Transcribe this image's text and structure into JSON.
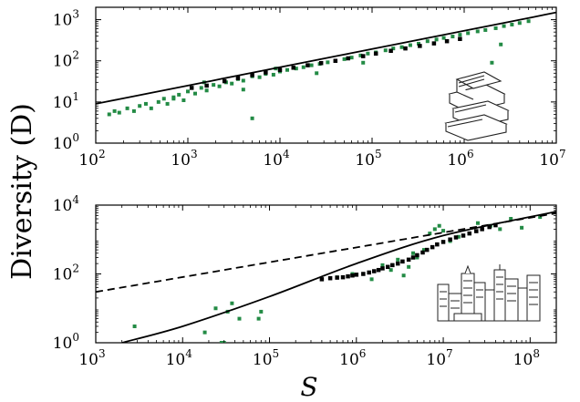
{
  "figure": {
    "ylabel": "Diversity (D)",
    "xlabel": "S"
  },
  "colors": {
    "green": "#238b45",
    "black": "#000000"
  },
  "chart_data": [
    {
      "type": "scatter",
      "panel": "top",
      "icon": "books-icon",
      "xscale": "log",
      "yscale": "log",
      "xlim": [
        100,
        10000000
      ],
      "ylim": [
        1,
        2000
      ],
      "x_ticks": [
        {
          "value": 100,
          "label": "10^2"
        },
        {
          "value": 1000,
          "label": "10^3"
        },
        {
          "value": 10000,
          "label": "10^4"
        },
        {
          "value": 100000,
          "label": "10^5"
        },
        {
          "value": 1000000,
          "label": "10^6"
        },
        {
          "value": 10000000,
          "label": "10^7"
        }
      ],
      "y_ticks": [
        {
          "value": 1,
          "label": "10^0"
        },
        {
          "value": 10,
          "label": "10^1"
        },
        {
          "value": 100,
          "label": "10^2"
        },
        {
          "value": 1000,
          "label": "10^3"
        }
      ],
      "series": [
        {
          "color": "#238b45",
          "marker": "square",
          "points": [
            [
              140,
              5
            ],
            [
              160,
              6
            ],
            [
              180,
              5.5
            ],
            [
              220,
              7
            ],
            [
              260,
              6
            ],
            [
              300,
              8
            ],
            [
              350,
              9
            ],
            [
              400,
              7
            ],
            [
              480,
              10
            ],
            [
              550,
              12
            ],
            [
              600,
              9
            ],
            [
              700,
              13
            ],
            [
              800,
              15
            ],
            [
              900,
              11
            ],
            [
              1000,
              18
            ],
            [
              1200,
              16
            ],
            [
              1400,
              22
            ],
            [
              1600,
              19
            ],
            [
              1900,
              26
            ],
            [
              2200,
              24
            ],
            [
              2600,
              30
            ],
            [
              3000,
              28
            ],
            [
              3500,
              36
            ],
            [
              4000,
              33
            ],
            [
              5000,
              42
            ],
            [
              6000,
              40
            ],
            [
              7000,
              48
            ],
            [
              8500,
              46
            ],
            [
              10000,
              55
            ],
            [
              12000,
              60
            ],
            [
              15000,
              65
            ],
            [
              18000,
              70
            ],
            [
              22000,
              78
            ],
            [
              27000,
              84
            ],
            [
              33000,
              92
            ],
            [
              40000,
              100
            ],
            [
              50000,
              110
            ],
            [
              60000,
              120
            ],
            [
              75000,
              135
            ],
            [
              90000,
              150
            ],
            [
              110000,
              160
            ],
            [
              140000,
              180
            ],
            [
              170000,
              200
            ],
            [
              210000,
              215
            ],
            [
              260000,
              240
            ],
            [
              320000,
              260
            ],
            [
              400000,
              300
            ],
            [
              500000,
              330
            ],
            [
              600000,
              360
            ],
            [
              750000,
              390
            ],
            [
              900000,
              430
            ],
            [
              1100000,
              470
            ],
            [
              1400000,
              520
            ],
            [
              1700000,
              560
            ],
            [
              2200000,
              620
            ],
            [
              2700000,
              700
            ],
            [
              3300000,
              760
            ],
            [
              4000000,
              830
            ],
            [
              5000000,
              920
            ],
            [
              2500000,
              250
            ],
            [
              2000000,
              90
            ],
            [
              5000,
              4
            ],
            [
              700,
              12
            ],
            [
              1500,
              30
            ],
            [
              4000,
              20
            ],
            [
              9000,
              65
            ],
            [
              25000,
              50
            ],
            [
              80000,
              90
            ]
          ]
        },
        {
          "color": "#000000",
          "marker": "square",
          "points": [
            [
              1100,
              22
            ],
            [
              1600,
              25
            ],
            [
              2500,
              32
            ],
            [
              3500,
              38
            ],
            [
              5000,
              45
            ],
            [
              7000,
              52
            ],
            [
              10000,
              60
            ],
            [
              14000,
              68
            ],
            [
              20000,
              78
            ],
            [
              28000,
              88
            ],
            [
              40000,
              100
            ],
            [
              55000,
              115
            ],
            [
              80000,
              130
            ],
            [
              110000,
              150
            ],
            [
              160000,
              175
            ],
            [
              230000,
              200
            ],
            [
              330000,
              230
            ],
            [
              470000,
              265
            ],
            [
              650000,
              300
            ],
            [
              900000,
              340
            ]
          ]
        }
      ],
      "fit_line": {
        "style": "solid",
        "color": "#000000",
        "x": [
          100,
          10000000
        ],
        "y": [
          9,
          1500
        ]
      }
    },
    {
      "type": "scatter",
      "panel": "bottom",
      "icon": "city-skyline-icon",
      "xscale": "log",
      "yscale": "log",
      "xlim": [
        1000,
        200000000
      ],
      "ylim": [
        1,
        10000
      ],
      "x_ticks": [
        {
          "value": 1000,
          "label": "10^3"
        },
        {
          "value": 10000,
          "label": "10^4"
        },
        {
          "value": 100000,
          "label": "10^5"
        },
        {
          "value": 1000000,
          "label": "10^6"
        },
        {
          "value": 10000000,
          "label": "10^7"
        },
        {
          "value": 100000000,
          "label": "10^8"
        }
      ],
      "y_ticks": [
        {
          "value": 1,
          "label": "10^0"
        },
        {
          "value": 100,
          "label": "10^2"
        },
        {
          "value": 10000,
          "label": "10^4"
        }
      ],
      "series": [
        {
          "color": "#238b45",
          "marker": "square",
          "points": [
            [
              2800,
              3
            ],
            [
              18000,
              2
            ],
            [
              24000,
              10
            ],
            [
              28000,
              1
            ],
            [
              30000,
              1
            ],
            [
              33000,
              8
            ],
            [
              37000,
              14
            ],
            [
              45000,
              5
            ],
            [
              75000,
              5
            ],
            [
              80000,
              8
            ],
            [
              600000,
              80
            ],
            [
              900000,
              100
            ],
            [
              1500000,
              70
            ],
            [
              2000000,
              180
            ],
            [
              2500000,
              130
            ],
            [
              3000000,
              260
            ],
            [
              3500000,
              90
            ],
            [
              4000000,
              160
            ],
            [
              4500000,
              400
            ],
            [
              5000000,
              300
            ],
            [
              6000000,
              500
            ],
            [
              7000000,
              1500
            ],
            [
              8000000,
              2000
            ],
            [
              9000000,
              2500
            ],
            [
              10000000,
              1800
            ],
            [
              12000000,
              900
            ],
            [
              15000000,
              1200
            ],
            [
              20000000,
              1500
            ],
            [
              25000000,
              3000
            ],
            [
              35000000,
              2500
            ],
            [
              45000000,
              2000
            ],
            [
              60000000,
              4000
            ],
            [
              80000000,
              2200
            ],
            [
              130000000,
              4500
            ]
          ]
        },
        {
          "color": "#000000",
          "marker": "square",
          "points": [
            [
              400000,
              70
            ],
            [
              500000,
              75
            ],
            [
              600000,
              78
            ],
            [
              700000,
              80
            ],
            [
              800000,
              85
            ],
            [
              900000,
              90
            ],
            [
              1000000,
              95
            ],
            [
              1200000,
              100
            ],
            [
              1400000,
              110
            ],
            [
              1600000,
              120
            ],
            [
              1800000,
              130
            ],
            [
              2000000,
              145
            ],
            [
              2300000,
              160
            ],
            [
              2600000,
              180
            ],
            [
              3000000,
              200
            ],
            [
              3400000,
              230
            ],
            [
              4000000,
              260
            ],
            [
              4500000,
              300
            ],
            [
              5000000,
              350
            ],
            [
              5800000,
              420
            ],
            [
              6500000,
              500
            ],
            [
              7500000,
              600
            ],
            [
              8500000,
              720
            ],
            [
              10000000,
              850
            ],
            [
              12000000,
              1000
            ],
            [
              14000000,
              1150
            ],
            [
              17000000,
              1300
            ],
            [
              20000000,
              1500
            ],
            [
              24000000,
              1750
            ],
            [
              28000000,
              2000
            ],
            [
              34000000,
              2300
            ],
            [
              40000000,
              2600
            ]
          ]
        }
      ],
      "fit_lines": [
        {
          "style": "dashed",
          "color": "#000000",
          "x": [
            1000,
            200000000
          ],
          "y": [
            30,
            5800
          ]
        },
        {
          "style": "solid",
          "color": "#000000",
          "x": [
            2000,
            10000,
            100000,
            1000000,
            10000000,
            200000000
          ],
          "y": [
            1,
            3,
            22,
            200,
            1300,
            6500
          ]
        }
      ]
    }
  ]
}
